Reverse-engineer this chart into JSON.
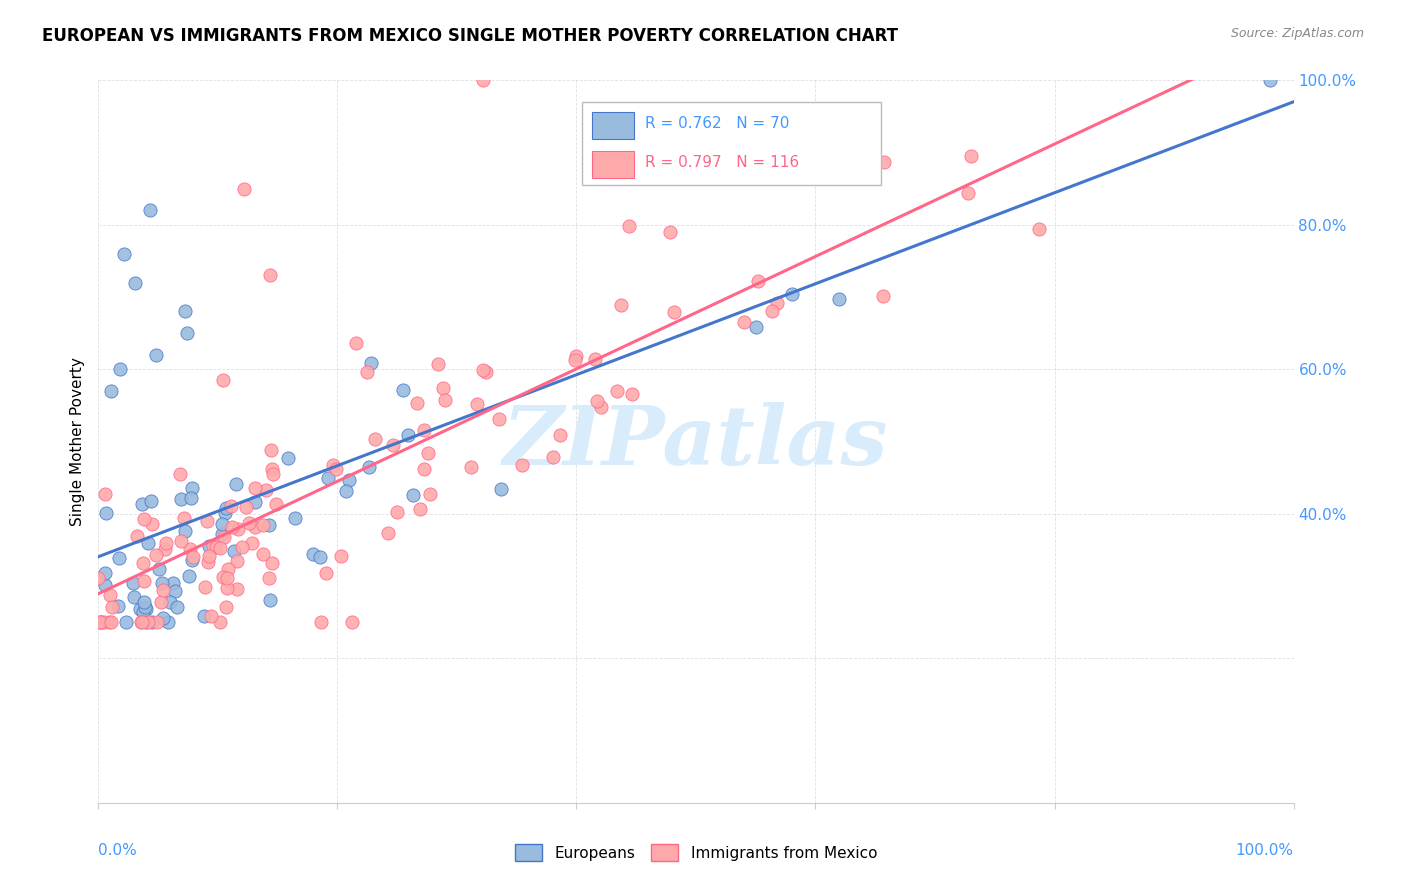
{
  "title": "EUROPEAN VS IMMIGRANTS FROM MEXICO SINGLE MOTHER POVERTY CORRELATION CHART",
  "source": "Source: ZipAtlas.com",
  "ylabel": "Single Mother Poverty",
  "legend_label1": "Europeans",
  "legend_label2": "Immigrants from Mexico",
  "r1": 0.762,
  "n1": 70,
  "r2": 0.797,
  "n2": 116,
  "color_blue": "#99BBDD",
  "color_pink": "#FFAAAA",
  "color_blue_line": "#4477CC",
  "color_pink_line": "#FF6688",
  "color_blue_dark": "#3366BB",
  "color_text_blue": "#4499FF",
  "watermark_color": "#D8ECFC",
  "bg_color": "#FFFFFF",
  "grid_color": "#CCCCCC"
}
